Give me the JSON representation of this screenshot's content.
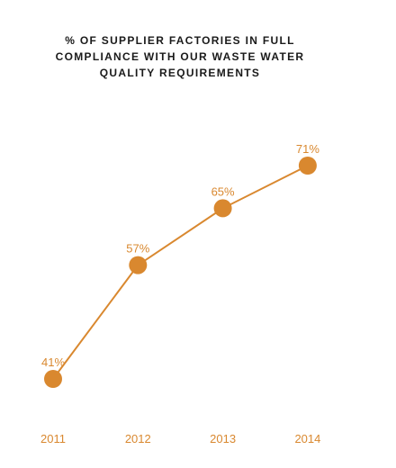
{
  "chart_data": {
    "type": "line",
    "title_lines": [
      "% OF SUPPLIER FACTORIES IN FULL",
      "COMPLIANCE WITH OUR WASTE WATER",
      "QUALITY REQUIREMENTS"
    ],
    "categories": [
      "2011",
      "2012",
      "2013",
      "2014"
    ],
    "series": [
      {
        "values": [
          41,
          57,
          65,
          71
        ],
        "data_labels": [
          "41%",
          "57%",
          "65%",
          "71%"
        ]
      }
    ],
    "ylim": [
      30,
      80
    ],
    "grid": false,
    "legend": "none",
    "color": "#D9882F",
    "label_color": "#D9882F"
  }
}
